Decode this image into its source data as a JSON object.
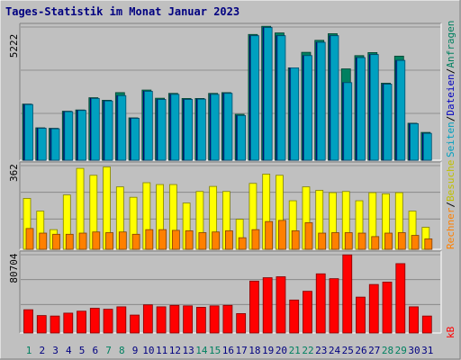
{
  "chart_data": [
    {
      "type": "bar",
      "title": "Tages-Statistik im Monat Januar 2023",
      "categories": [
        "1",
        "2",
        "3",
        "4",
        "5",
        "6",
        "7",
        "8",
        "9",
        "10",
        "11",
        "12",
        "13",
        "14",
        "15",
        "16",
        "17",
        "18",
        "19",
        "20",
        "21",
        "22",
        "23",
        "24",
        "25",
        "26",
        "27",
        "28",
        "29",
        "30",
        "31"
      ],
      "weekend_days": [
        "1",
        "7",
        "8",
        "14",
        "15",
        "21",
        "22",
        "28",
        "29"
      ],
      "ymax_label": "5222",
      "ylim": [
        0,
        5222
      ],
      "grid": true,
      "series": [
        {
          "name": "Anfragen",
          "color": "#008060",
          "values": [
            2200,
            1270,
            1250,
            1920,
            1970,
            2450,
            2350,
            2650,
            1660,
            2750,
            2430,
            2620,
            2420,
            2420,
            2620,
            2650,
            1800,
            4930,
            5250,
            4990,
            3620,
            4230,
            4700,
            4960,
            3580,
            4100,
            4220,
            3020,
            4080,
            1450,
            1090
          ]
        },
        {
          "name": "Dateien",
          "color": "#0000c0",
          "values": [
            2180,
            1250,
            1230,
            1900,
            1950,
            2420,
            2320,
            2530,
            1640,
            2700,
            2380,
            2580,
            2380,
            2390,
            2580,
            2620,
            1750,
            4880,
            5200,
            4880,
            3620,
            4100,
            4620,
            4880,
            3040,
            4020,
            4140,
            2980,
            3910,
            1430,
            1050
          ]
        },
        {
          "name": "Seiten",
          "color": "#00a0c0",
          "values": [
            2180,
            1250,
            1230,
            1900,
            1950,
            2420,
            2320,
            2530,
            1640,
            2700,
            2380,
            2580,
            2380,
            2390,
            2580,
            2620,
            1750,
            4880,
            5200,
            4880,
            3620,
            4100,
            4620,
            4880,
            3040,
            4020,
            4140,
            2980,
            3910,
            1430,
            1050
          ]
        }
      ]
    },
    {
      "type": "bar",
      "categories": [
        "1",
        "2",
        "3",
        "4",
        "5",
        "6",
        "7",
        "8",
        "9",
        "10",
        "11",
        "12",
        "13",
        "14",
        "15",
        "16",
        "17",
        "18",
        "19",
        "20",
        "21",
        "22",
        "23",
        "24",
        "25",
        "26",
        "27",
        "28",
        "29",
        "30",
        "31"
      ],
      "ymax_label": "362",
      "ylim": [
        0,
        362
      ],
      "grid": true,
      "series": [
        {
          "name": "Besuche",
          "color": "#ff8000",
          "values": [
            90,
            70,
            65,
            65,
            70,
            75,
            72,
            75,
            65,
            85,
            85,
            82,
            80,
            72,
            75,
            80,
            50,
            85,
            120,
            125,
            80,
            115,
            70,
            72,
            72,
            70,
            55,
            70,
            72,
            60,
            45
          ]
        },
        {
          "name": "Rechner",
          "color": "#ffff00",
          "values": [
            220,
            165,
            85,
            235,
            350,
            320,
            356,
            270,
            225,
            288,
            280,
            280,
            200,
            250,
            272,
            250,
            130,
            285,
            325,
            320,
            210,
            270,
            255,
            245,
            250,
            210,
            245,
            240,
            245,
            165,
            95
          ]
        }
      ]
    },
    {
      "type": "bar",
      "categories": [
        "1",
        "2",
        "3",
        "4",
        "5",
        "6",
        "7",
        "8",
        "9",
        "10",
        "11",
        "12",
        "13",
        "14",
        "15",
        "16",
        "17",
        "18",
        "19",
        "20",
        "21",
        "22",
        "23",
        "24",
        "25",
        "26",
        "27",
        "28",
        "29",
        "30",
        "31"
      ],
      "ymax_label": "80704",
      "ylim": [
        0,
        80704
      ],
      "grid": true,
      "series": [
        {
          "name": "kB",
          "color": "#ff0000",
          "values": [
            24000,
            18000,
            17500,
            20500,
            22500,
            25500,
            24500,
            27000,
            18500,
            29000,
            27000,
            28500,
            28000,
            26500,
            28000,
            28500,
            20000,
            53500,
            57000,
            58000,
            34000,
            43000,
            61000,
            56000,
            80500,
            37000,
            50000,
            52500,
            71500,
            27000,
            17500
          ]
        }
      ]
    }
  ],
  "side_labels": {
    "top": {
      "anfragen": "Anfragen",
      "dateien": "Dateien",
      "seiten": "Seiten"
    },
    "middle": {
      "besuche": "Besuche",
      "rechner": "Rechner"
    },
    "bottom": {
      "kb": "kB"
    },
    "separator": "/"
  },
  "colors": {
    "panel_bg": "#c0c0c0",
    "frame_bg": "#c0c0c0",
    "day_normal": "#000080",
    "day_weekend": "#008060"
  }
}
